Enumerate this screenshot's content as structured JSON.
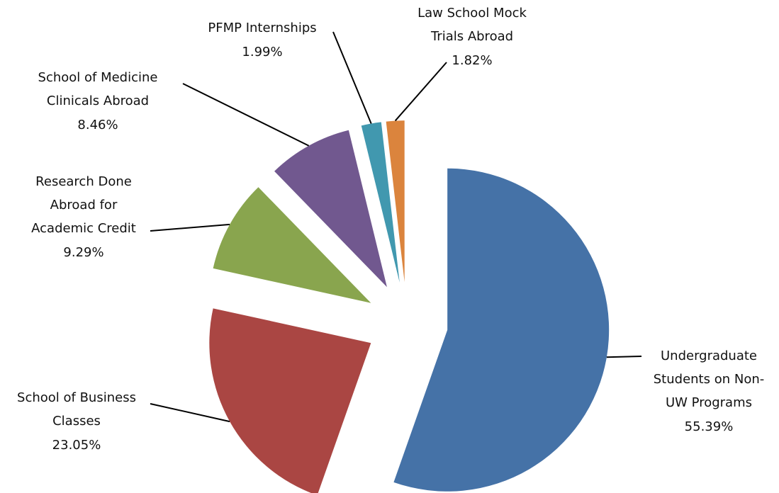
{
  "chart_data": {
    "type": "pie",
    "categories": [
      [
        "Undergraduate",
        "Students on Non-",
        "UW Programs"
      ],
      [
        "School of Business",
        "Classes"
      ],
      [
        "Research Done",
        "Abroad for",
        "Academic Credit"
      ],
      [
        "School of Medicine",
        "Clinicals Abroad"
      ],
      [
        "PFMP Internships"
      ],
      [
        "Law School Mock",
        "Trials Abroad"
      ]
    ],
    "values": [
      55.39,
      23.05,
      9.29,
      8.46,
      1.99,
      1.82
    ],
    "value_labels": [
      "55.39%",
      "23.05%",
      "9.29%",
      "8.46%",
      "1.99%",
      "1.82%"
    ],
    "colors": [
      "#4572a7",
      "#aa4643",
      "#89a54e",
      "#71588f",
      "#4198af",
      "#db843d"
    ]
  }
}
